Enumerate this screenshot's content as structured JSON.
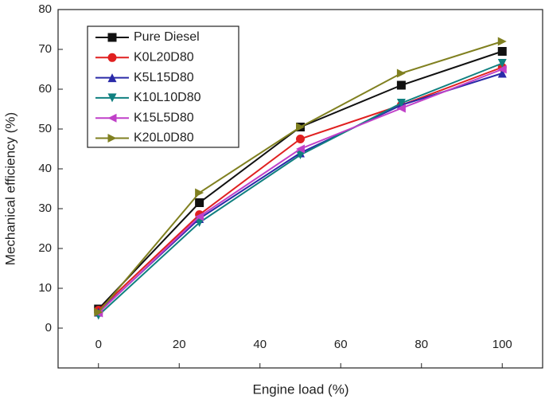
{
  "chart_data": {
    "type": "line",
    "x_label": "Engine load (%)",
    "y_label": "Mechanical efficiency (%)",
    "x": [
      0,
      25,
      50,
      75,
      100
    ],
    "xlim": [
      -10,
      110
    ],
    "xticks": [
      0,
      20,
      40,
      60,
      80,
      100
    ],
    "ylim": [
      -10,
      80
    ],
    "yticks": [
      0,
      10,
      20,
      30,
      40,
      50,
      60,
      70,
      80
    ],
    "legend": "upper left",
    "series": [
      {
        "name": "Pure Diesel",
        "color": "#111111",
        "marker": "square",
        "values": [
          4.8,
          31.5,
          50.5,
          61,
          69.5
        ]
      },
      {
        "name": "K0L20D80",
        "color": "#e02020",
        "marker": "circle",
        "values": [
          4.5,
          28.5,
          47.5,
          56,
          65.5
        ]
      },
      {
        "name": "K5L15D80",
        "color": "#2a2aa8",
        "marker": "triangle-up",
        "values": [
          4,
          27.5,
          44,
          56,
          64
        ]
      },
      {
        "name": "K10L10D80",
        "color": "#108080",
        "marker": "triangle-down",
        "values": [
          3.2,
          26.5,
          43.5,
          56.5,
          66.5
        ]
      },
      {
        "name": "K15L5D80",
        "color": "#c040c8",
        "marker": "triangle-left",
        "values": [
          3.8,
          28,
          45,
          55.2,
          65
        ]
      },
      {
        "name": "K20L0D80",
        "color": "#808020",
        "marker": "triangle-right",
        "values": [
          4,
          34,
          50.5,
          64,
          72
        ]
      }
    ]
  }
}
